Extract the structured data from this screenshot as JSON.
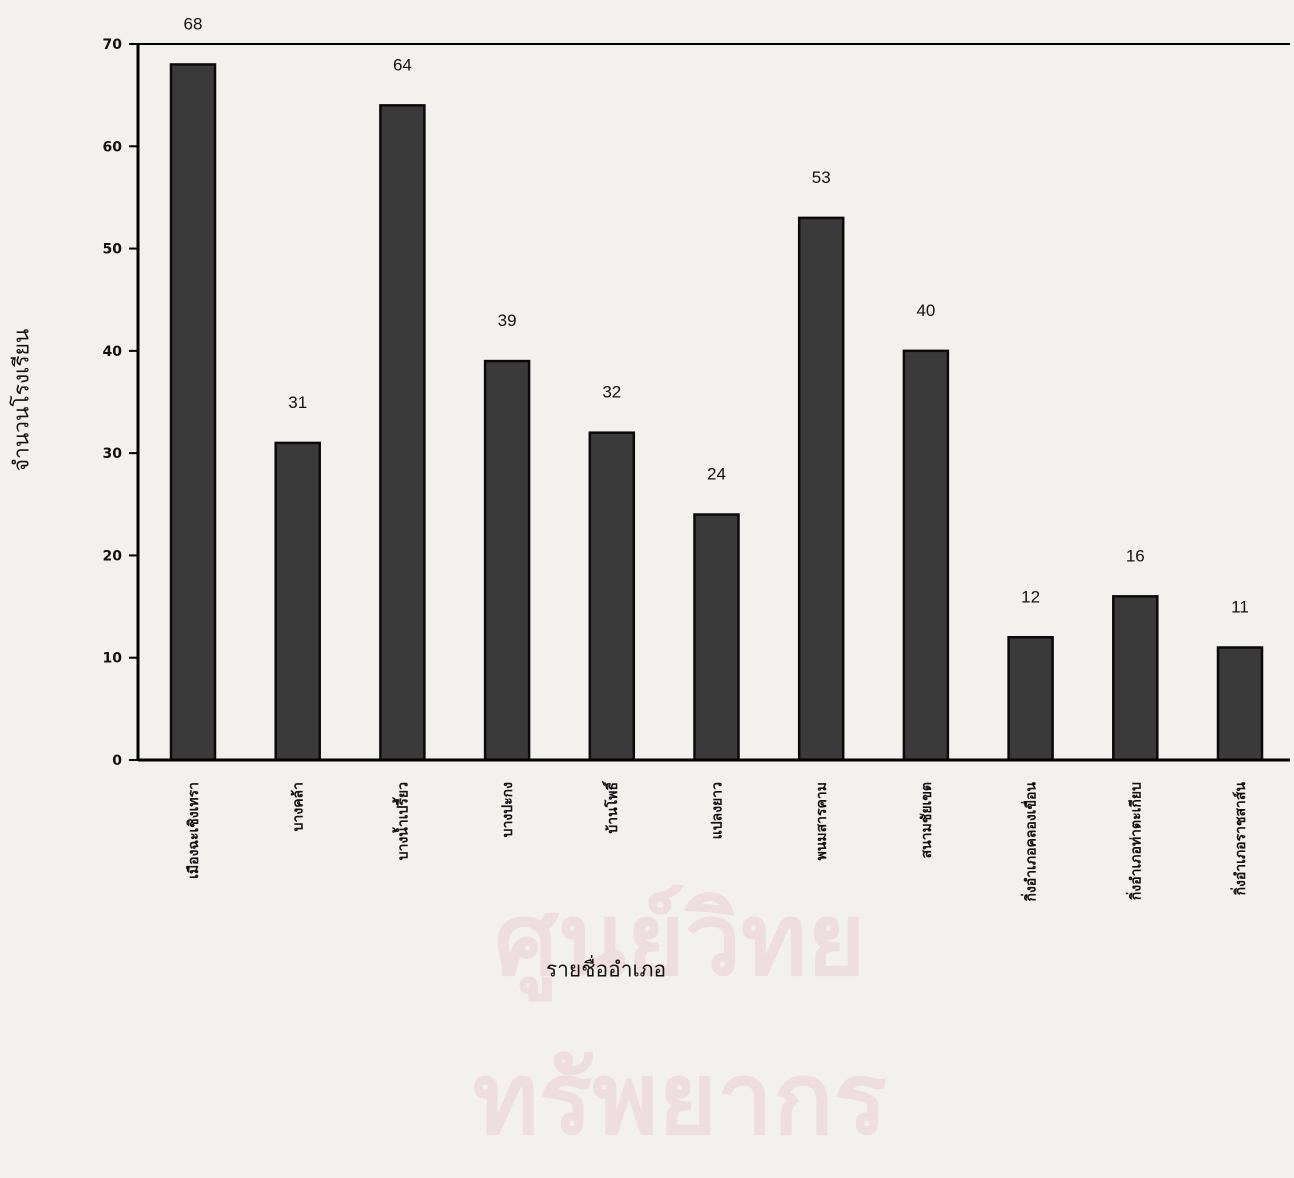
{
  "chart_data": {
    "type": "bar",
    "xlabel": "รายชื่ออำเภอ",
    "ylabel": "จำนวนโรงเรียน",
    "categories": [
      "เมืองฉะเชิงเทรา",
      "บางคล้า",
      "บางน้ำเปรี้ยว",
      "บางปะกง",
      "บ้านโพธิ์",
      "แปลงยาว",
      "พนมสารคาม",
      "สนามชัยเขต",
      "กิ่งอำเภอคลองเขื่อน",
      "กิ่งอำเภอท่าตะเกียบ",
      "กิ่งอำเภอราชสาส์น"
    ],
    "values": [
      68,
      31,
      64,
      39,
      32,
      24,
      53,
      40,
      12,
      16,
      11
    ],
    "data_labels": [
      "68",
      "31",
      "64",
      "39",
      "32",
      "24",
      "53",
      "40",
      "12",
      "16",
      "11"
    ],
    "ylim": [
      0,
      70
    ],
    "yticks": [
      0,
      10,
      20,
      30,
      40,
      50,
      60,
      70
    ],
    "ytick_labels": [
      "0",
      "10",
      "20",
      "30",
      "40",
      "50",
      "60",
      "70"
    ],
    "grid": false,
    "legend": "none",
    "bar_color": "#3a3a3a",
    "bar_edge_color": "#0a0a0a"
  },
  "watermark": {
    "text": "ศูนย์วิทยทรัพยากร",
    "color": "#d678a0"
  }
}
